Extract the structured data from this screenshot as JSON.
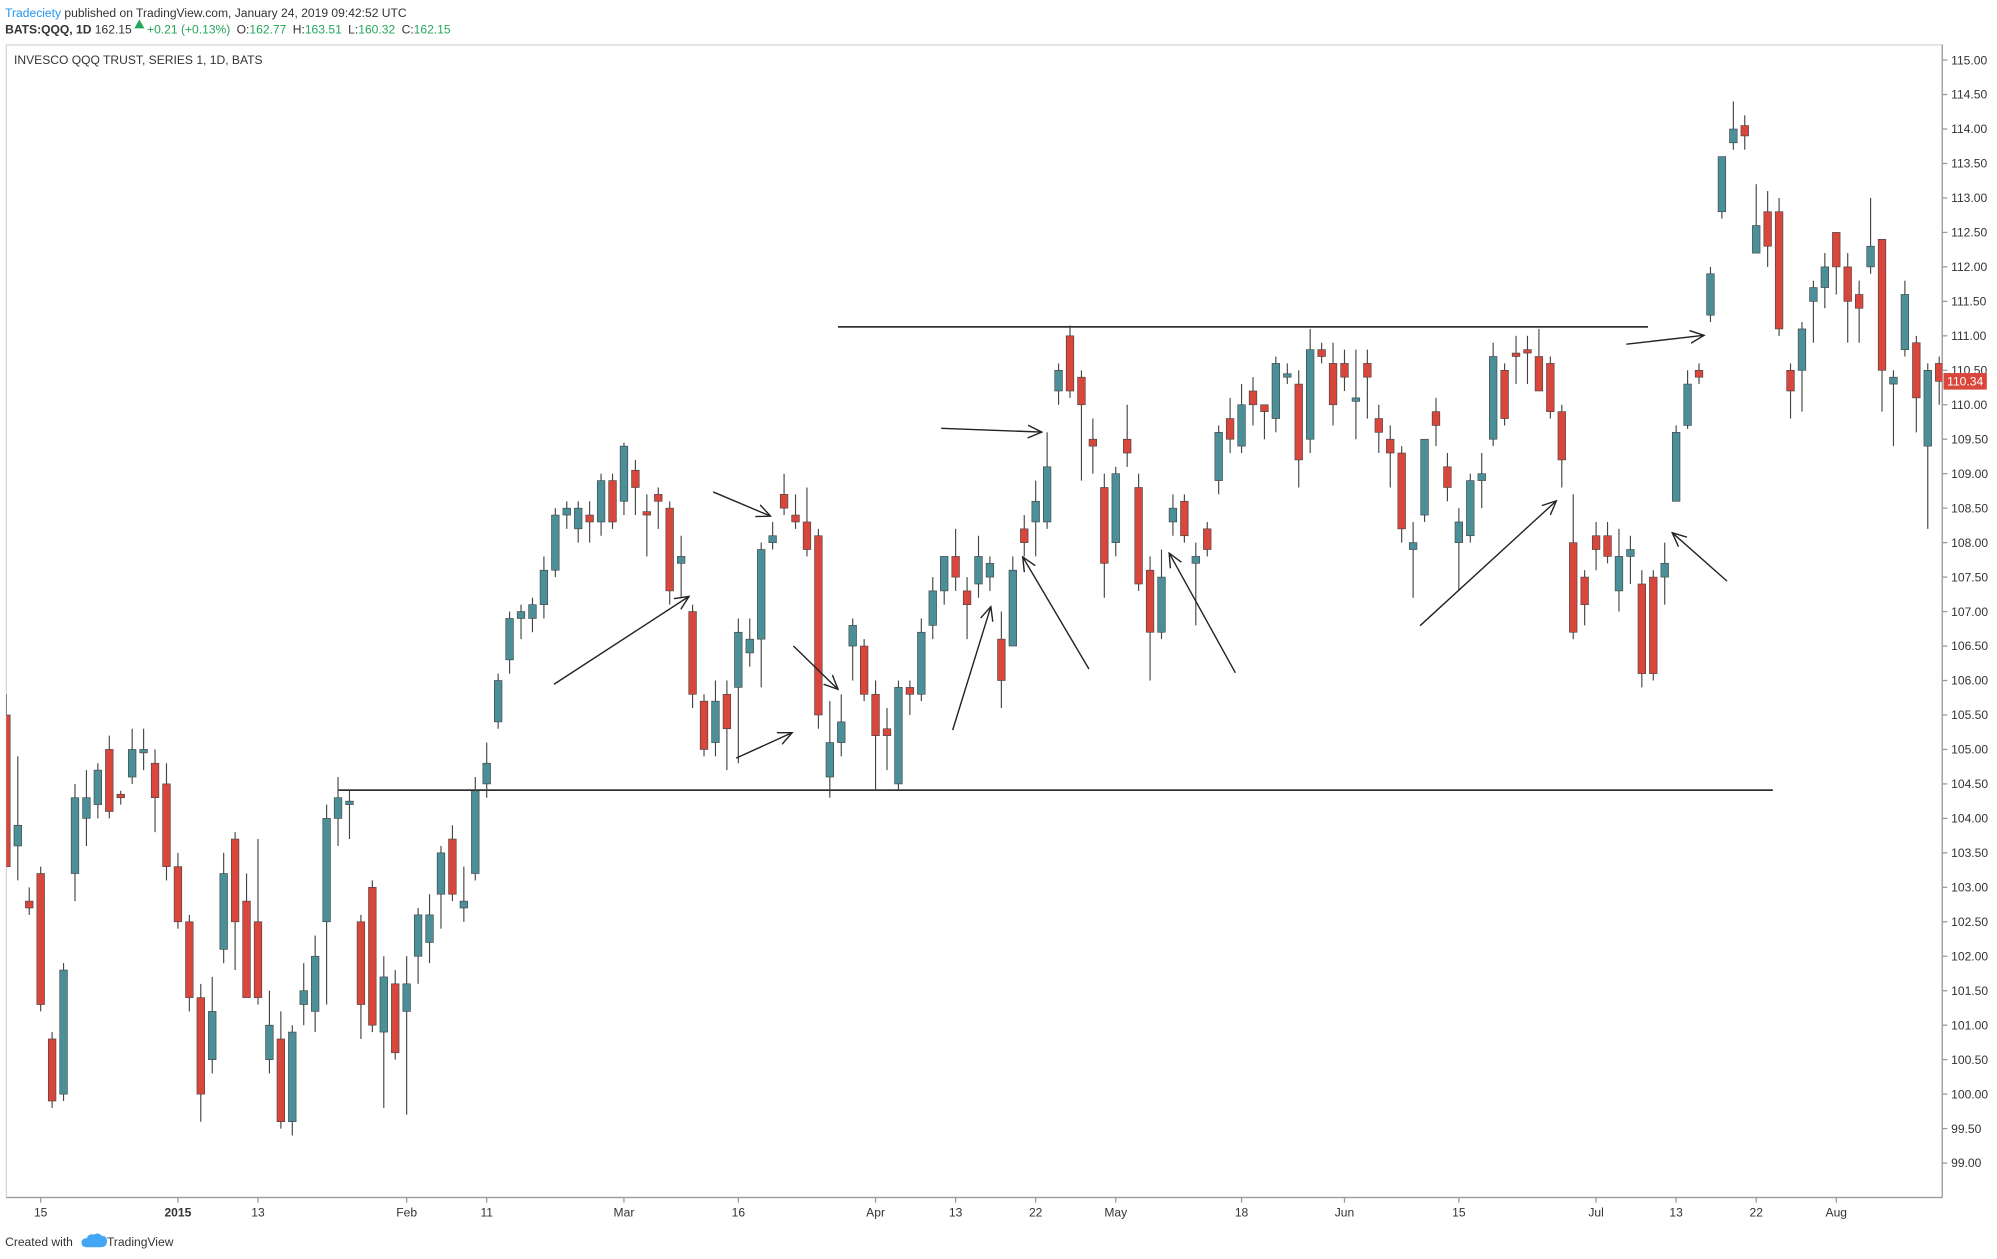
{
  "header": {
    "author": "Tradeciety",
    "published": "published on TradingView.com, January 24, 2019 09:42:52 UTC",
    "symbol": "BATS:QQQ, 1D",
    "price": 162.15,
    "change": "+0.21 (+0.13%)",
    "ohlc": [
      {
        "label": "O:",
        "value": 162.77
      },
      {
        "label": "H:",
        "value": 163.51
      },
      {
        "label": "L:",
        "value": 160.32
      },
      {
        "label": "C:",
        "value": 162.15
      }
    ]
  },
  "footer": {
    "created": "Created with",
    "brand": "TradingView"
  },
  "chart_data": {
    "type": "candlestick",
    "title": "INVESCO QQQ TRUST, SERIES 1, 1D, BATS",
    "up_color": "#4b8f99",
    "down_color": "#d9463b",
    "wick_color": "#444444",
    "grid": false,
    "categories": [
      null,
      null,
      null,
      "15",
      null,
      null,
      null,
      null,
      null,
      null,
      null,
      null,
      null,
      null,
      null,
      "2015",
      null,
      null,
      null,
      null,
      null,
      null,
      "13",
      null,
      null,
      null,
      null,
      null,
      null,
      null,
      null,
      null,
      null,
      null,
      null,
      "Feb",
      null,
      null,
      null,
      null,
      null,
      null,
      "11",
      null,
      null,
      null,
      null,
      null,
      null,
      null,
      null,
      null,
      null,
      null,
      "Mar",
      null,
      null,
      null,
      null,
      null,
      null,
      null,
      null,
      null,
      "16",
      null,
      null,
      null,
      null,
      null,
      null,
      null,
      null,
      null,
      null,
      null,
      "Apr",
      null,
      null,
      null,
      null,
      null,
      null,
      "13",
      null,
      null,
      null,
      null,
      null,
      null,
      "22",
      null,
      null,
      null,
      null,
      null,
      null,
      "May",
      null,
      null,
      null,
      null,
      null,
      null,
      null,
      null,
      null,
      null,
      "18",
      null,
      null,
      null,
      null,
      null,
      null,
      null,
      null,
      "Jun",
      null,
      null,
      null,
      null,
      null,
      null,
      null,
      null,
      null,
      "15",
      null,
      null,
      null,
      null,
      null,
      null,
      null,
      null,
      null,
      null,
      null,
      "Jul",
      null,
      null,
      null,
      null,
      null,
      null,
      "13",
      null,
      null,
      null,
      null,
      null,
      null,
      "22",
      null,
      null,
      null,
      null,
      null,
      null,
      "Aug",
      null,
      null,
      null,
      null,
      null,
      null,
      null,
      null,
      null
    ],
    "open": [
      105.5,
      103.6,
      102.8,
      103.2,
      100.8,
      100.0,
      103.2,
      104.0,
      104.2,
      105.0,
      104.35,
      104.6,
      104.95,
      104.8,
      104.5,
      103.3,
      102.5,
      101.4,
      100.5,
      102.1,
      103.7,
      102.8,
      102.5,
      100.5,
      100.8,
      99.6,
      101.3,
      101.2,
      102.5,
      104.0,
      104.2,
      102.5,
      103.0,
      100.9,
      101.6,
      101.2,
      102.0,
      102.2,
      102.9,
      103.7,
      102.7,
      103.2,
      104.5,
      105.4,
      106.3,
      106.9,
      106.9,
      107.1,
      107.6,
      108.4,
      108.2,
      108.4,
      108.3,
      108.9,
      108.6,
      109.05,
      108.45,
      108.7,
      108.5,
      107.7,
      107.0,
      105.7,
      105.1,
      105.8,
      105.9,
      106.4,
      106.6,
      108.0,
      108.7,
      108.4,
      108.3,
      108.1,
      104.6,
      105.1,
      106.5,
      106.5,
      105.8,
      105.3,
      104.5,
      105.9,
      105.8,
      106.8,
      107.3,
      107.8,
      107.3,
      107.4,
      107.5,
      106.6,
      106.5,
      108.2,
      108.3,
      108.3,
      110.2,
      111.0,
      110.4,
      109.5,
      108.8,
      108.0,
      109.5,
      108.8,
      107.6,
      106.7,
      108.3,
      108.6,
      107.7,
      108.2,
      108.9,
      109.8,
      109.4,
      110.2,
      110.0,
      109.8,
      110.4,
      110.3,
      109.5,
      110.8,
      110.6,
      110.6,
      110.05,
      110.6,
      109.8,
      109.5,
      109.3,
      107.9,
      108.4,
      109.9,
      109.1,
      108.0,
      108.1,
      108.9,
      109.5,
      110.5,
      110.75,
      110.8,
      110.7,
      110.6,
      109.9,
      108.0,
      107.5,
      108.1,
      108.1,
      107.3,
      107.8,
      107.4,
      107.5,
      107.5,
      108.6,
      109.7,
      110.5,
      111.3,
      112.8,
      113.8,
      114.05,
      112.2,
      112.8,
      112.8,
      110.5,
      110.5,
      111.5,
      111.7,
      112.5,
      112.0,
      111.6,
      112.0,
      112.4,
      110.3,
      110.8,
      110.9,
      109.4,
      110.6
    ],
    "high": [
      105.8,
      104.9,
      103.0,
      103.3,
      100.9,
      101.9,
      104.5,
      104.7,
      104.8,
      105.2,
      104.4,
      105.3,
      105.3,
      105.0,
      104.8,
      103.5,
      102.6,
      101.6,
      101.7,
      103.5,
      103.8,
      103.2,
      103.7,
      101.5,
      101.2,
      101.0,
      101.9,
      102.3,
      104.2,
      104.6,
      104.4,
      102.6,
      103.1,
      102.0,
      101.8,
      102.0,
      102.7,
      102.9,
      103.6,
      103.9,
      103.3,
      104.6,
      105.1,
      106.1,
      107.0,
      107.1,
      107.2,
      107.8,
      108.5,
      108.6,
      108.6,
      108.6,
      109.0,
      109.0,
      109.45,
      109.2,
      108.7,
      108.8,
      108.6,
      108.1,
      107.1,
      105.8,
      106.0,
      106.0,
      106.9,
      106.9,
      108.0,
      108.3,
      109.0,
      108.7,
      108.8,
      108.2,
      105.7,
      105.8,
      106.9,
      106.6,
      106.0,
      105.6,
      106.0,
      106.0,
      106.9,
      107.5,
      107.8,
      108.2,
      107.5,
      108.1,
      107.8,
      107.0,
      107.8,
      108.4,
      108.9,
      109.6,
      110.6,
      111.15,
      110.5,
      109.8,
      109.0,
      109.1,
      110.0,
      109.0,
      107.8,
      107.9,
      108.7,
      108.7,
      108.0,
      108.3,
      109.7,
      110.1,
      110.3,
      110.4,
      110.0,
      110.7,
      110.6,
      110.5,
      111.1,
      110.9,
      110.9,
      110.8,
      110.8,
      110.8,
      110.0,
      109.7,
      109.4,
      108.3,
      109.5,
      110.1,
      109.3,
      108.5,
      109.0,
      109.3,
      110.9,
      110.6,
      111.0,
      111.0,
      111.1,
      110.7,
      110.0,
      108.7,
      107.6,
      108.3,
      108.3,
      108.2,
      108.1,
      107.6,
      107.6,
      108.0,
      109.7,
      110.5,
      110.6,
      112.0,
      113.6,
      114.4,
      114.2,
      113.2,
      113.1,
      113.0,
      110.6,
      111.2,
      111.8,
      112.2,
      112.5,
      112.2,
      111.8,
      113.0,
      112.4,
      110.5,
      111.8,
      111.0,
      110.6,
      110.7
    ],
    "low": [
      103.3,
      103.1,
      102.6,
      101.2,
      99.8,
      99.9,
      102.8,
      103.6,
      104.0,
      104.0,
      104.2,
      104.5,
      104.7,
      103.8,
      103.1,
      102.4,
      101.2,
      99.6,
      100.3,
      101.9,
      101.8,
      101.4,
      101.3,
      100.3,
      99.5,
      99.4,
      101.0,
      100.9,
      101.3,
      103.6,
      103.7,
      100.8,
      100.9,
      99.8,
      100.5,
      99.7,
      101.6,
      101.9,
      102.4,
      102.8,
      102.5,
      103.1,
      104.3,
      105.3,
      106.1,
      106.6,
      106.7,
      106.9,
      107.5,
      108.2,
      108.0,
      108.0,
      108.1,
      108.2,
      108.4,
      108.4,
      107.8,
      108.2,
      107.1,
      107.2,
      105.6,
      104.9,
      104.9,
      104.7,
      104.8,
      106.2,
      105.9,
      107.9,
      108.4,
      108.2,
      107.8,
      105.3,
      104.3,
      104.9,
      106.0,
      105.7,
      104.4,
      104.7,
      104.4,
      105.5,
      105.7,
      106.6,
      107.1,
      107.3,
      106.6,
      107.2,
      107.3,
      105.6,
      106.5,
      107.8,
      107.8,
      108.2,
      110.0,
      110.1,
      108.9,
      109.0,
      107.2,
      107.8,
      109.1,
      107.3,
      106.0,
      106.6,
      108.1,
      108.0,
      106.8,
      107.8,
      108.7,
      109.3,
      109.3,
      109.7,
      109.5,
      109.6,
      110.3,
      108.8,
      109.3,
      110.6,
      109.7,
      110.2,
      109.5,
      109.8,
      109.3,
      108.8,
      108.0,
      107.2,
      108.3,
      109.4,
      108.6,
      107.3,
      108.0,
      108.5,
      109.4,
      109.7,
      110.3,
      110.3,
      110.2,
      109.8,
      108.8,
      106.6,
      106.8,
      107.6,
      107.7,
      107.0,
      107.4,
      105.9,
      106.0,
      107.1,
      108.6,
      109.65,
      110.3,
      111.2,
      112.7,
      113.7,
      113.7,
      112.2,
      112.0,
      111.0,
      109.8,
      109.9,
      110.9,
      111.4,
      111.6,
      110.9,
      110.9,
      111.9,
      109.9,
      109.4,
      110.7,
      109.6,
      108.2,
      110.0
    ],
    "close": [
      103.3,
      103.9,
      102.7,
      101.3,
      99.9,
      101.8,
      104.3,
      104.3,
      104.7,
      104.1,
      104.3,
      105.0,
      105.0,
      104.3,
      103.3,
      102.5,
      101.4,
      100.0,
      101.2,
      103.2,
      102.5,
      101.4,
      101.4,
      101.0,
      99.6,
      100.9,
      101.5,
      102.0,
      104.0,
      104.3,
      104.25,
      101.3,
      101.0,
      101.7,
      100.6,
      101.6,
      102.6,
      102.6,
      103.5,
      102.9,
      102.8,
      104.4,
      104.8,
      106.0,
      106.9,
      107.0,
      107.1,
      107.6,
      108.4,
      108.5,
      108.5,
      108.3,
      108.9,
      108.3,
      109.4,
      108.8,
      108.4,
      108.6,
      107.3,
      107.8,
      105.8,
      105.0,
      105.7,
      105.3,
      106.7,
      106.6,
      107.9,
      108.1,
      108.5,
      108.3,
      107.9,
      105.5,
      105.1,
      105.4,
      106.8,
      105.8,
      105.2,
      105.2,
      105.9,
      105.8,
      106.7,
      107.3,
      107.8,
      107.5,
      107.1,
      107.8,
      107.7,
      106.0,
      107.6,
      108.0,
      108.6,
      109.1,
      110.5,
      110.2,
      110.0,
      109.4,
      107.7,
      109.0,
      109.3,
      107.4,
      106.7,
      107.5,
      108.5,
      108.1,
      107.8,
      107.9,
      109.6,
      109.5,
      110.0,
      110.0,
      109.9,
      110.6,
      110.45,
      109.2,
      110.8,
      110.7,
      110.0,
      110.4,
      110.1,
      110.4,
      109.6,
      109.3,
      108.2,
      108.0,
      109.5,
      109.7,
      108.8,
      108.3,
      108.9,
      109.0,
      110.7,
      109.8,
      110.7,
      110.75,
      110.2,
      109.9,
      109.2,
      106.7,
      107.1,
      107.9,
      107.8,
      107.8,
      107.9,
      106.1,
      106.1,
      107.7,
      109.6,
      110.3,
      110.4,
      111.9,
      113.6,
      114.0,
      113.9,
      112.6,
      112.3,
      111.1,
      110.2,
      111.1,
      111.7,
      112.0,
      112.0,
      111.5,
      111.4,
      112.3,
      110.5,
      110.4,
      111.6,
      110.1,
      110.5,
      110.34
    ],
    "last_price": 110.34,
    "levels": [
      111.13,
      104.41
    ],
    "ylim": [
      98.5,
      115.22
    ],
    "yticks": [
      {
        "value": 99,
        "label": "99.00"
      },
      {
        "value": 99.5,
        "label": "99.50"
      },
      {
        "value": 100,
        "label": "100.00"
      },
      {
        "value": 100.5,
        "label": "100.50"
      },
      {
        "value": 101,
        "label": "101.00"
      },
      {
        "value": 101.5,
        "label": "101.50"
      },
      {
        "value": 102,
        "label": "102.00"
      },
      {
        "value": 102.5,
        "label": "102.50"
      },
      {
        "value": 103,
        "label": "103.00"
      },
      {
        "value": 103.5,
        "label": "103.50"
      },
      {
        "value": 104,
        "label": "104.00"
      },
      {
        "value": 104.5,
        "label": "104.50"
      },
      {
        "value": 105,
        "label": "105.00"
      },
      {
        "value": 105.5,
        "label": "105.50"
      },
      {
        "value": 106,
        "label": "106.00"
      },
      {
        "value": 106.5,
        "label": "106.50"
      },
      {
        "value": 107,
        "label": "107.00"
      },
      {
        "value": 107.5,
        "label": "107.50"
      },
      {
        "value": 108,
        "label": "108.00"
      },
      {
        "value": 108.5,
        "label": "108.50"
      },
      {
        "value": 109,
        "label": "109.00"
      },
      {
        "value": 109.5,
        "label": "109.50"
      },
      {
        "value": 110,
        "label": "110.00"
      },
      {
        "value": 110.5,
        "label": "110.50"
      },
      {
        "value": 111,
        "label": "111.00"
      },
      {
        "value": 111.5,
        "label": "111.50"
      },
      {
        "value": 112,
        "label": "112.00"
      },
      {
        "value": 112.5,
        "label": "112.50"
      },
      {
        "value": 113,
        "label": "113.00"
      },
      {
        "value": 113.5,
        "label": "113.50"
      },
      {
        "value": 114,
        "label": "114.00"
      },
      {
        "value": 114.5,
        "label": "114.50"
      },
      {
        "value": 115,
        "label": "115.00"
      }
    ]
  }
}
